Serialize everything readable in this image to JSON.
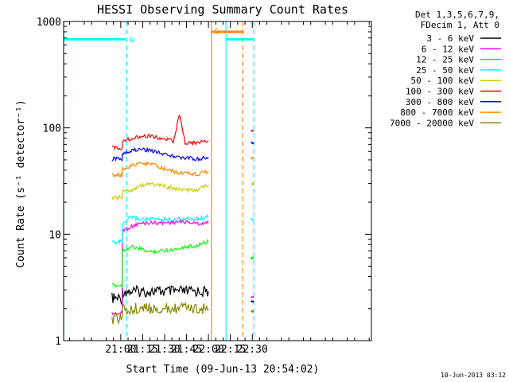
{
  "chart_data": {
    "type": "line",
    "title": "HESSI Observing Summary Count Rates",
    "xlabel": "Start Time (09-Jun-13 20:54:02)",
    "ylabel": "Count Rate (s⁻¹ detector⁻¹)",
    "y_scale": "log",
    "ylim": [
      1,
      1000
    ],
    "xlim_minutes": [
      20.9,
      231.5
    ],
    "x_ticks": [
      {
        "label": "21:00",
        "minute": 60
      },
      {
        "label": "21:15",
        "minute": 75
      },
      {
        "label": "21:30",
        "minute": 90
      },
      {
        "label": "21:45",
        "minute": 105
      },
      {
        "label": "22:00",
        "minute": 120
      },
      {
        "label": "22:15",
        "minute": 135
      },
      {
        "label": "22:30",
        "minute": 150
      }
    ],
    "y_ticks": [
      {
        "label": "1",
        "value": 1
      },
      {
        "label": "10",
        "value": 10
      },
      {
        "label": "100",
        "value": 100
      },
      {
        "label": "1000",
        "value": 1000
      }
    ],
    "legend_header": [
      "Det 1,3,5,6,7,9,",
      "FDecim 1, Att 0"
    ],
    "legend_position": "right",
    "series": [
      {
        "name": "3 - 6 keV",
        "color": "#000000",
        "points": [
          [
            54,
            2.5
          ],
          [
            61,
            2.5
          ],
          [
            61,
            2.9
          ],
          [
            90,
            2.9
          ],
          [
            120,
            2.9
          ]
        ],
        "segment2": [
          [
            149,
            2.3
          ],
          [
            151,
            2.3
          ]
        ]
      },
      {
        "name": "6 - 12 keV",
        "color": "#ff00ff",
        "points": [
          [
            54,
            1.8
          ],
          [
            61,
            1.8
          ],
          [
            61,
            10.8
          ],
          [
            66,
            11.6
          ],
          [
            73,
            12.6
          ],
          [
            80,
            12.8
          ],
          [
            88,
            12.8
          ],
          [
            96,
            13
          ],
          [
            104,
            13.1
          ],
          [
            112,
            12.6
          ],
          [
            120,
            12.8
          ]
        ],
        "segment2": [
          [
            149,
            2.6
          ],
          [
            151,
            2.6
          ]
        ]
      },
      {
        "name": "12 - 25 keV",
        "color": "#00ff00",
        "points": [
          [
            54,
            3.3
          ],
          [
            61,
            3.3
          ],
          [
            61,
            7
          ],
          [
            67,
            7.6
          ],
          [
            73,
            7.3
          ],
          [
            80,
            6.8
          ],
          [
            88,
            7
          ],
          [
            96,
            7.2
          ],
          [
            104,
            7.6
          ],
          [
            112,
            7.8
          ],
          [
            120,
            8.6
          ]
        ],
        "segment2": [
          [
            149,
            6
          ],
          [
            151,
            6
          ]
        ]
      },
      {
        "name": "25 - 50 keV",
        "color": "#00ffff",
        "points": [
          [
            54,
            8.5
          ],
          [
            61,
            8.5
          ],
          [
            61,
            12
          ],
          [
            67,
            14.6
          ],
          [
            73,
            13.8
          ],
          [
            80,
            13.8
          ],
          [
            88,
            13.8
          ],
          [
            96,
            13.8
          ],
          [
            104,
            14
          ],
          [
            112,
            13.8
          ],
          [
            120,
            14.6
          ]
        ],
        "segment2": [
          [
            149,
            13.8
          ],
          [
            151,
            13.8
          ]
        ]
      },
      {
        "name": "50 - 100 keV",
        "color": "#cccc00",
        "points": [
          [
            54,
            22
          ],
          [
            61,
            22
          ],
          [
            61,
            25
          ],
          [
            67,
            26
          ],
          [
            73,
            28.5
          ],
          [
            80,
            30
          ],
          [
            88,
            28.5
          ],
          [
            96,
            27
          ],
          [
            104,
            26
          ],
          [
            112,
            26
          ],
          [
            120,
            29
          ]
        ],
        "segment2": [
          [
            149,
            30
          ],
          [
            151,
            30
          ]
        ]
      },
      {
        "name": "100 - 300 keV",
        "color": "#ff0000",
        "points": [
          [
            54,
            65
          ],
          [
            61,
            65
          ],
          [
            61,
            75
          ],
          [
            67,
            79
          ],
          [
            73,
            84
          ],
          [
            80,
            84
          ],
          [
            88,
            79
          ],
          [
            96,
            75
          ],
          [
            100,
            135
          ],
          [
            104,
            73
          ],
          [
            112,
            72
          ],
          [
            120,
            76
          ]
        ],
        "segment2": [
          [
            149,
            94
          ],
          [
            151,
            94
          ]
        ]
      },
      {
        "name": "300 - 800 keV",
        "color": "#0000ff",
        "points": [
          [
            54,
            51
          ],
          [
            61,
            51
          ],
          [
            61,
            58
          ],
          [
            67,
            61
          ],
          [
            73,
            63
          ],
          [
            80,
            62
          ],
          [
            88,
            58
          ],
          [
            96,
            54
          ],
          [
            104,
            52
          ],
          [
            112,
            51
          ],
          [
            120,
            53
          ]
        ],
        "segment2": [
          [
            149,
            72
          ],
          [
            151,
            72
          ]
        ]
      },
      {
        "name": "800 - 7000 keV",
        "color": "#ff8800",
        "points": [
          [
            54,
            36
          ],
          [
            61,
            36
          ],
          [
            61,
            41
          ],
          [
            67,
            44
          ],
          [
            73,
            46
          ],
          [
            80,
            46
          ],
          [
            88,
            42
          ],
          [
            96,
            39
          ],
          [
            104,
            37
          ],
          [
            112,
            37
          ],
          [
            120,
            39
          ]
        ],
        "segment2": [
          [
            149,
            52
          ],
          [
            151,
            52
          ]
        ]
      },
      {
        "name": "7000 - 20000 keV",
        "color": "#888800",
        "points": [
          [
            54,
            1.6
          ],
          [
            61,
            1.6
          ],
          [
            61,
            2
          ],
          [
            90,
            2
          ],
          [
            120,
            2
          ]
        ],
        "segment2": [
          [
            149,
            1.9
          ],
          [
            151,
            1.9
          ]
        ]
      }
    ],
    "annotations": [
      {
        "text": "N",
        "color": "#00ffff",
        "at_minute": 64,
        "y_value": 680
      },
      {
        "text": "S",
        "color": "#ff8800",
        "at_minute": 122,
        "y_value": 820
      }
    ],
    "flag_bars": [
      {
        "type": "night",
        "color": "#00ffff",
        "from": 20.9,
        "to": 63,
        "y_value": 680
      },
      {
        "type": "night",
        "color": "#00ffff",
        "from": 132,
        "to": 151,
        "y_value": 680
      },
      {
        "type": "saa",
        "color": "#ff8800",
        "from": 122,
        "to": 144,
        "y_value": 800
      }
    ],
    "vlines": [
      {
        "minute": 20.9,
        "color": "#00ffff",
        "style": "solid"
      },
      {
        "minute": 64,
        "color": "#00ffff",
        "style": "dashed"
      },
      {
        "minute": 122,
        "color": "#ff8800",
        "style": "solid"
      },
      {
        "minute": 132,
        "color": "#00ffff",
        "style": "solid"
      },
      {
        "minute": 143.5,
        "color": "#ff8800",
        "style": "dashed"
      },
      {
        "minute": 151,
        "color": "#00ffff",
        "style": "dashed"
      }
    ],
    "gap": {
      "from": 120,
      "to": 149
    }
  },
  "footer": {
    "date_stamp": "10-Jun-2013 03:12"
  }
}
